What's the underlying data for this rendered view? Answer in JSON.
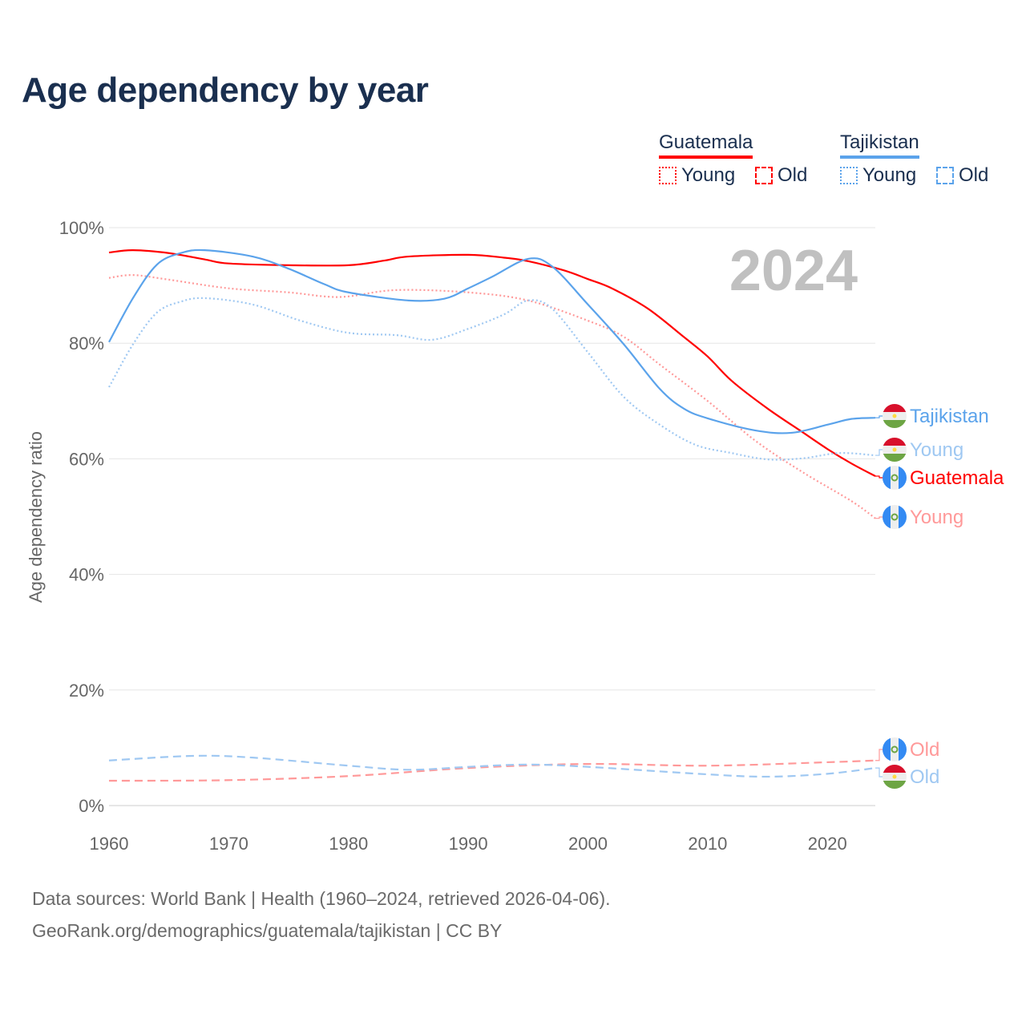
{
  "title": "Age dependency by year",
  "legend": {
    "countries": [
      {
        "name": "Guatemala",
        "color": "#ff0000"
      },
      {
        "name": "Tajikistan",
        "color": "#5ba3eb"
      }
    ],
    "young_label": "Young",
    "old_label": "Old"
  },
  "footer": {
    "line1": "Data sources: World Bank | Health (1960–2024, retrieved 2026-04-06).",
    "line2": "GeoRank.org/demographics/guatemala/tajikistan | CC BY"
  },
  "chart_data": {
    "type": "line",
    "title": "Age dependency by year",
    "ylabel": "Age dependency ratio",
    "xlabel": "",
    "xlim": [
      1960,
      2024
    ],
    "ylim": [
      0,
      100
    ],
    "xticks": [
      1960,
      1970,
      1980,
      1990,
      2000,
      2010,
      2020
    ],
    "yticks": [
      {
        "v": 0,
        "label": "0%"
      },
      {
        "v": 20,
        "label": "20%"
      },
      {
        "v": 40,
        "label": "40%"
      },
      {
        "v": 60,
        "label": "60%"
      },
      {
        "v": 80,
        "label": "80%"
      },
      {
        "v": 100,
        "label": "100%"
      }
    ],
    "year_annotation": "2024",
    "grid": true,
    "series": [
      {
        "name": "Guatemala",
        "label": "Guatemala",
        "kind": "total",
        "color": "#ff0000",
        "labelColor": "#ff0000",
        "flag": "guatemala",
        "points": [
          [
            1960,
            95.7
          ],
          [
            1962,
            96.1
          ],
          [
            1965,
            95.6
          ],
          [
            1968,
            94.5
          ],
          [
            1970,
            93.8
          ],
          [
            1975,
            93.5
          ],
          [
            1980,
            93.5
          ],
          [
            1983,
            94.3
          ],
          [
            1985,
            95
          ],
          [
            1990,
            95.3
          ],
          [
            1993,
            94.8
          ],
          [
            1995,
            94.2
          ],
          [
            1998,
            92.6
          ],
          [
            2000,
            91.1
          ],
          [
            2002,
            89.5
          ],
          [
            2005,
            86
          ],
          [
            2008,
            81.1
          ],
          [
            2010,
            77.7
          ],
          [
            2012,
            73.5
          ],
          [
            2015,
            68.7
          ],
          [
            2018,
            64.5
          ],
          [
            2020,
            61.7
          ],
          [
            2022,
            59.2
          ],
          [
            2024,
            57
          ]
        ]
      },
      {
        "name": "Guatemala Young",
        "label": "Young",
        "kind": "young",
        "color": "#ff9999",
        "labelColor": "#ff9999",
        "flag": "guatemala",
        "points": [
          [
            1960,
            91.3
          ],
          [
            1962,
            91.8
          ],
          [
            1965,
            91
          ],
          [
            1970,
            89.5
          ],
          [
            1975,
            88.8
          ],
          [
            1978,
            88.1
          ],
          [
            1980,
            88.1
          ],
          [
            1984,
            89.2
          ],
          [
            1990,
            88.8
          ],
          [
            1995,
            87.4
          ],
          [
            2000,
            83.9
          ],
          [
            2003,
            81.1
          ],
          [
            2006,
            76.3
          ],
          [
            2010,
            70
          ],
          [
            2014,
            63.1
          ],
          [
            2018,
            57.6
          ],
          [
            2022,
            52.7
          ],
          [
            2024,
            49.7
          ]
        ]
      },
      {
        "name": "Guatemala Old",
        "label": "Old",
        "kind": "old",
        "color": "#ff9999",
        "labelColor": "#ff9999",
        "flag": "guatemala",
        "points": [
          [
            1960,
            4.3
          ],
          [
            1970,
            4.4
          ],
          [
            1980,
            5.1
          ],
          [
            1990,
            6.5
          ],
          [
            2000,
            7.2
          ],
          [
            2010,
            6.9
          ],
          [
            2020,
            7.5
          ],
          [
            2024,
            7.8
          ]
        ]
      },
      {
        "name": "Tajikistan",
        "label": "Tajikistan",
        "kind": "total",
        "color": "#5ba3eb",
        "labelColor": "#5ba3eb",
        "flag": "tajikistan",
        "points": [
          [
            1960,
            80.2
          ],
          [
            1962,
            87.8
          ],
          [
            1964,
            93.6
          ],
          [
            1966,
            95.6
          ],
          [
            1968,
            96.1
          ],
          [
            1972,
            95
          ],
          [
            1975,
            92.9
          ],
          [
            1978,
            90.2
          ],
          [
            1980,
            88.8
          ],
          [
            1985,
            87.4
          ],
          [
            1988,
            87.7
          ],
          [
            1990,
            89.5
          ],
          [
            1992,
            91.5
          ],
          [
            1995,
            94.6
          ],
          [
            1997,
            93.3
          ],
          [
            2000,
            86.7
          ],
          [
            2003,
            79.8
          ],
          [
            2006,
            72.1
          ],
          [
            2008,
            68.7
          ],
          [
            2010,
            67
          ],
          [
            2014,
            64.9
          ],
          [
            2017,
            64.5
          ],
          [
            2020,
            65.9
          ],
          [
            2022,
            66.9
          ],
          [
            2024,
            67.1
          ]
        ]
      },
      {
        "name": "Tajikistan Young",
        "label": "Young",
        "kind": "young",
        "color": "#9fc8f2",
        "labelColor": "#9fc8f2",
        "flag": "tajikistan",
        "points": [
          [
            1960,
            72.4
          ],
          [
            1962,
            79.8
          ],
          [
            1964,
            85.3
          ],
          [
            1966,
            87.2
          ],
          [
            1968,
            87.8
          ],
          [
            1972,
            86.7
          ],
          [
            1976,
            83.9
          ],
          [
            1980,
            81.8
          ],
          [
            1984,
            81.4
          ],
          [
            1987,
            80.6
          ],
          [
            1990,
            82.5
          ],
          [
            1993,
            85
          ],
          [
            1995,
            87.4
          ],
          [
            1997,
            86
          ],
          [
            2000,
            78.4
          ],
          [
            2003,
            70.7
          ],
          [
            2006,
            65.9
          ],
          [
            2009,
            62.4
          ],
          [
            2012,
            61
          ],
          [
            2015,
            59.9
          ],
          [
            2018,
            60.1
          ],
          [
            2021,
            61
          ],
          [
            2024,
            60.6
          ]
        ]
      },
      {
        "name": "Tajikistan Old",
        "label": "Old",
        "kind": "old",
        "color": "#9fc8f2",
        "labelColor": "#9fc8f2",
        "flag": "tajikistan",
        "points": [
          [
            1960,
            7.8
          ],
          [
            1967,
            8.6
          ],
          [
            1972,
            8.3
          ],
          [
            1980,
            6.9
          ],
          [
            1985,
            6.2
          ],
          [
            1990,
            6.7
          ],
          [
            1995,
            7.1
          ],
          [
            2000,
            6.7
          ],
          [
            2010,
            5.4
          ],
          [
            2015,
            5
          ],
          [
            2020,
            5.5
          ],
          [
            2024,
            6.5
          ]
        ]
      }
    ]
  }
}
